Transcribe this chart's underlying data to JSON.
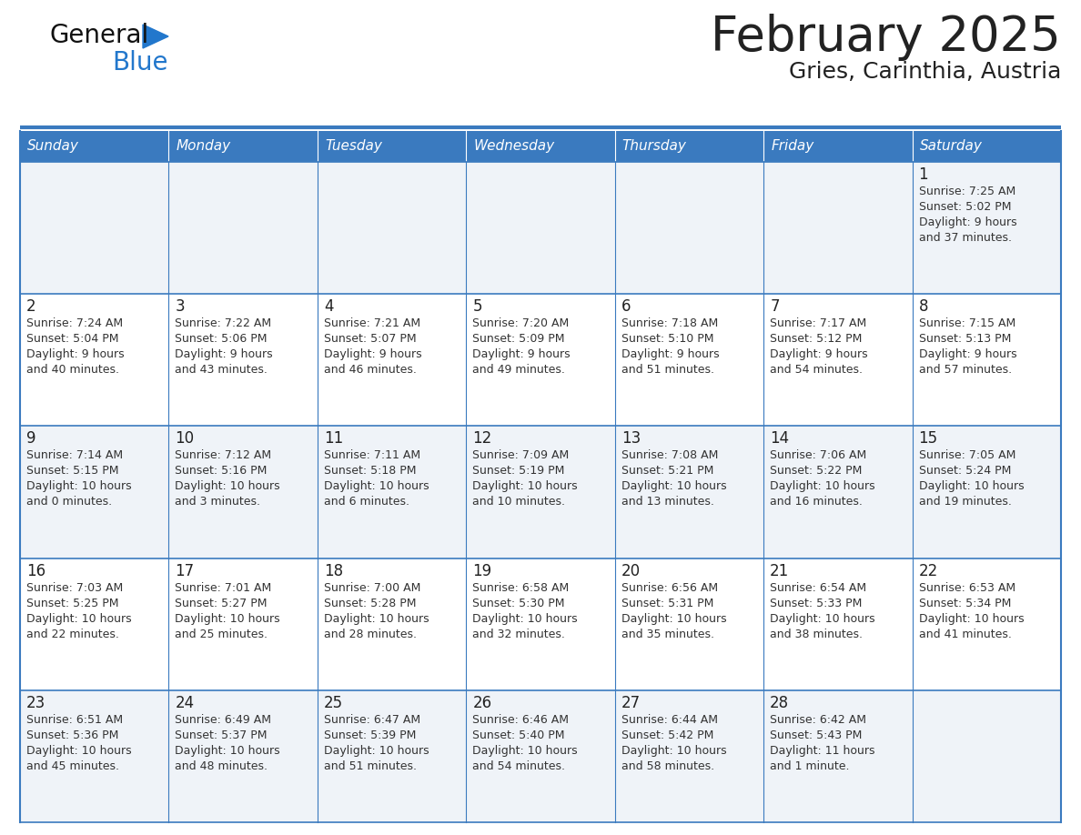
{
  "title": "February 2025",
  "subtitle": "Gries, Carinthia, Austria",
  "header_bg": "#3a7abf",
  "header_text_color": "#ffffff",
  "days_of_week": [
    "Sunday",
    "Monday",
    "Tuesday",
    "Wednesday",
    "Thursday",
    "Friday",
    "Saturday"
  ],
  "cell_bg_even": "#eff3f8",
  "cell_bg_odd": "#ffffff",
  "border_color": "#3a7abf",
  "day_number_color": "#222222",
  "info_text_color": "#333333",
  "logo_general_color": "#111111",
  "logo_blue_color": "#2277cc",
  "separator_color": "#3a7abf",
  "calendar": [
    [
      null,
      null,
      null,
      null,
      null,
      null,
      {
        "day": 1,
        "sunrise": "7:25 AM",
        "sunset": "5:02 PM",
        "daylight": "9 hours and 37 minutes."
      }
    ],
    [
      {
        "day": 2,
        "sunrise": "7:24 AM",
        "sunset": "5:04 PM",
        "daylight": "9 hours and 40 minutes."
      },
      {
        "day": 3,
        "sunrise": "7:22 AM",
        "sunset": "5:06 PM",
        "daylight": "9 hours and 43 minutes."
      },
      {
        "day": 4,
        "sunrise": "7:21 AM",
        "sunset": "5:07 PM",
        "daylight": "9 hours and 46 minutes."
      },
      {
        "day": 5,
        "sunrise": "7:20 AM",
        "sunset": "5:09 PM",
        "daylight": "9 hours and 49 minutes."
      },
      {
        "day": 6,
        "sunrise": "7:18 AM",
        "sunset": "5:10 PM",
        "daylight": "9 hours and 51 minutes."
      },
      {
        "day": 7,
        "sunrise": "7:17 AM",
        "sunset": "5:12 PM",
        "daylight": "9 hours and 54 minutes."
      },
      {
        "day": 8,
        "sunrise": "7:15 AM",
        "sunset": "5:13 PM",
        "daylight": "9 hours and 57 minutes."
      }
    ],
    [
      {
        "day": 9,
        "sunrise": "7:14 AM",
        "sunset": "5:15 PM",
        "daylight": "10 hours and 0 minutes."
      },
      {
        "day": 10,
        "sunrise": "7:12 AM",
        "sunset": "5:16 PM",
        "daylight": "10 hours and 3 minutes."
      },
      {
        "day": 11,
        "sunrise": "7:11 AM",
        "sunset": "5:18 PM",
        "daylight": "10 hours and 6 minutes."
      },
      {
        "day": 12,
        "sunrise": "7:09 AM",
        "sunset": "5:19 PM",
        "daylight": "10 hours and 10 minutes."
      },
      {
        "day": 13,
        "sunrise": "7:08 AM",
        "sunset": "5:21 PM",
        "daylight": "10 hours and 13 minutes."
      },
      {
        "day": 14,
        "sunrise": "7:06 AM",
        "sunset": "5:22 PM",
        "daylight": "10 hours and 16 minutes."
      },
      {
        "day": 15,
        "sunrise": "7:05 AM",
        "sunset": "5:24 PM",
        "daylight": "10 hours and 19 minutes."
      }
    ],
    [
      {
        "day": 16,
        "sunrise": "7:03 AM",
        "sunset": "5:25 PM",
        "daylight": "10 hours and 22 minutes."
      },
      {
        "day": 17,
        "sunrise": "7:01 AM",
        "sunset": "5:27 PM",
        "daylight": "10 hours and 25 minutes."
      },
      {
        "day": 18,
        "sunrise": "7:00 AM",
        "sunset": "5:28 PM",
        "daylight": "10 hours and 28 minutes."
      },
      {
        "day": 19,
        "sunrise": "6:58 AM",
        "sunset": "5:30 PM",
        "daylight": "10 hours and 32 minutes."
      },
      {
        "day": 20,
        "sunrise": "6:56 AM",
        "sunset": "5:31 PM",
        "daylight": "10 hours and 35 minutes."
      },
      {
        "day": 21,
        "sunrise": "6:54 AM",
        "sunset": "5:33 PM",
        "daylight": "10 hours and 38 minutes."
      },
      {
        "day": 22,
        "sunrise": "6:53 AM",
        "sunset": "5:34 PM",
        "daylight": "10 hours and 41 minutes."
      }
    ],
    [
      {
        "day": 23,
        "sunrise": "6:51 AM",
        "sunset": "5:36 PM",
        "daylight": "10 hours and 45 minutes."
      },
      {
        "day": 24,
        "sunrise": "6:49 AM",
        "sunset": "5:37 PM",
        "daylight": "10 hours and 48 minutes."
      },
      {
        "day": 25,
        "sunrise": "6:47 AM",
        "sunset": "5:39 PM",
        "daylight": "10 hours and 51 minutes."
      },
      {
        "day": 26,
        "sunrise": "6:46 AM",
        "sunset": "5:40 PM",
        "daylight": "10 hours and 54 minutes."
      },
      {
        "day": 27,
        "sunrise": "6:44 AM",
        "sunset": "5:42 PM",
        "daylight": "10 hours and 58 minutes."
      },
      {
        "day": 28,
        "sunrise": "6:42 AM",
        "sunset": "5:43 PM",
        "daylight": "11 hours and 1 minute."
      },
      null
    ]
  ]
}
